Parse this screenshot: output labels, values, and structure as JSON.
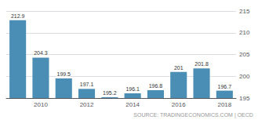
{
  "chart_data": {
    "type": "bar",
    "categories": [
      null,
      "2010",
      null,
      "2012",
      null,
      "2014",
      null,
      "2016",
      null,
      "2018"
    ],
    "values": [
      212.9,
      204.3,
      199.5,
      197.1,
      195.2,
      196.1,
      196.8,
      201,
      201.8,
      196.7
    ],
    "color": "#4a8db5",
    "ylim": [
      195,
      215
    ],
    "yticks": [
      195,
      200,
      205,
      210,
      215
    ],
    "grid": true,
    "data_labels": true,
    "annotation": "SOURCE: TRADINGECONOMICS.COM | OECD"
  }
}
